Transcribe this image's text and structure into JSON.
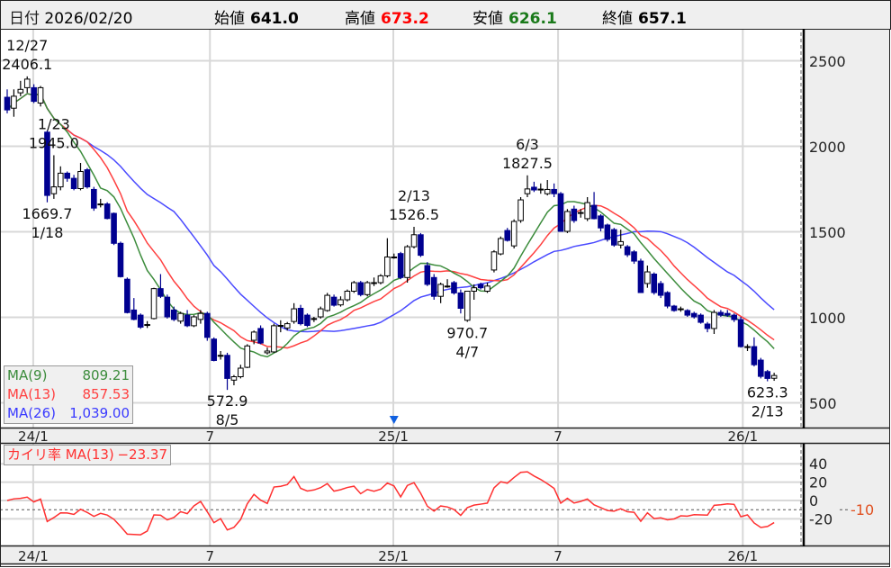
{
  "header": {
    "date_label": "日付",
    "date": "2026/02/20",
    "open_label": "始値",
    "open": "641.0",
    "high_label": "高値",
    "high": "673.2",
    "low_label": "安値",
    "low": "626.1",
    "close_label": "終値",
    "close": "657.1"
  },
  "colors": {
    "up_fill": "#ffffff",
    "down_fill": "#000090",
    "ma9": "#3c8c3c",
    "ma13": "#ff4040",
    "ma26": "#4a4aff",
    "kairi": "#ff3030",
    "high_value": "#ff0000",
    "low_value": "#1a7a1a",
    "minus10_label": "#e05020"
  },
  "legend": [
    {
      "name": "MA(9)",
      "value": "809.21",
      "color": "#3c8c3c"
    },
    {
      "name": "MA(13)",
      "value": "857.53",
      "color": "#ff4040"
    },
    {
      "name": "MA(26)",
      "value": "1,039.00",
      "color": "#3a3aff"
    }
  ],
  "kairi_legend": {
    "name": "カイリ率 MA(13)",
    "value": "−23.37"
  },
  "chart_data": [
    {
      "type": "candlestick",
      "interval": "weekly",
      "ylim": [
        400,
        2650
      ],
      "yticks": [
        500,
        1000,
        1500,
        2000,
        2500
      ],
      "grid": true,
      "moving_averages": [
        9,
        13,
        26
      ],
      "xticks": [
        {
          "label": "24/1",
          "week": 3.9
        },
        {
          "label": "7",
          "week": 30.4
        },
        {
          "label": "25/1",
          "week": 57.9
        },
        {
          "label": "7",
          "week": 82.6
        },
        {
          "label": "26/1",
          "week": 110.3
        }
      ],
      "ohlc": [
        [
          2284,
          2330,
          2190,
          2210
        ],
        [
          2220,
          2330,
          2170,
          2290
        ],
        [
          2310,
          2380,
          2290,
          2330
        ],
        [
          2340,
          2406.1,
          2310,
          2390
        ],
        [
          2340,
          2360,
          2250,
          2260
        ],
        [
          2250,
          2350,
          2230,
          2340
        ],
        [
          2080,
          2090,
          1669.7,
          1710
        ],
        [
          1720,
          1945.0,
          1690,
          1760
        ],
        [
          1760,
          1880,
          1740,
          1840
        ],
        [
          1840,
          1850,
          1790,
          1810
        ],
        [
          1810,
          1830,
          1740,
          1750
        ],
        [
          1750,
          1900,
          1740,
          1850
        ],
        [
          1860,
          1870,
          1750,
          1760
        ],
        [
          1745,
          1760,
          1620,
          1636
        ],
        [
          1660,
          1690,
          1640,
          1660
        ],
        [
          1660,
          1670,
          1570,
          1575
        ],
        [
          1605,
          1610,
          1420,
          1430
        ],
        [
          1430,
          1440,
          1230,
          1235
        ],
        [
          1220,
          1230,
          1020,
          1025
        ],
        [
          1040,
          1110,
          980,
          985
        ],
        [
          1010,
          1020,
          930,
          940
        ],
        [
          955,
          975,
          935,
          955
        ],
        [
          990,
          1170,
          985,
          1165
        ],
        [
          1165,
          1250,
          1110,
          1120
        ],
        [
          1115,
          1130,
          990,
          1000
        ],
        [
          1040,
          1060,
          975,
          985
        ],
        [
          975,
          1030,
          960,
          1020
        ],
        [
          1010,
          1040,
          940,
          948
        ],
        [
          948,
          1010,
          940,
          1000
        ],
        [
          985,
          1040,
          960,
          1020
        ],
        [
          1020,
          1030,
          860,
          880
        ],
        [
          870,
          880,
          740,
          745
        ],
        [
          775,
          800,
          750,
          775
        ],
        [
          775,
          790,
          572.9,
          640
        ],
        [
          630,
          660,
          600,
          650
        ],
        [
          650,
          720,
          640,
          700
        ],
        [
          705,
          840,
          700,
          830
        ],
        [
          863,
          920,
          840,
          911
        ],
        [
          932,
          950,
          840,
          847
        ],
        [
          790,
          820,
          780,
          800
        ],
        [
          795,
          960,
          790,
          948
        ],
        [
          950,
          980,
          910,
          950
        ],
        [
          935,
          970,
          920,
          960
        ],
        [
          973,
          1080,
          960,
          1047
        ],
        [
          1050,
          1070,
          950,
          960
        ],
        [
          1010,
          1020,
          940,
          950
        ],
        [
          985,
          1000,
          970,
          990
        ],
        [
          1000,
          1060,
          990,
          1047
        ],
        [
          1037,
          1140,
          1030,
          1126
        ],
        [
          1115,
          1130,
          1060,
          1068
        ],
        [
          1070,
          1120,
          1060,
          1100
        ],
        [
          1100,
          1160,
          1090,
          1150
        ],
        [
          1150,
          1210,
          1140,
          1200
        ],
        [
          1200,
          1210,
          1120,
          1130
        ],
        [
          1130,
          1210,
          1120,
          1200
        ],
        [
          1200,
          1230,
          1180,
          1200
        ],
        [
          1200,
          1250,
          1190,
          1240
        ],
        [
          1240,
          1460,
          1230,
          1350
        ],
        [
          1350,
          1370,
          1340,
          1350
        ],
        [
          1370,
          1380,
          1220,
          1230
        ],
        [
          1230,
          1420,
          1200,
          1410
        ],
        [
          1410,
          1526.5,
          1400,
          1480
        ],
        [
          1480,
          1490,
          1350,
          1360
        ],
        [
          1300,
          1320,
          1180,
          1190
        ],
        [
          1230,
          1250,
          1100,
          1120
        ],
        [
          1120,
          1200,
          1080,
          1190
        ],
        [
          1180,
          1220,
          1170,
          1180
        ],
        [
          1200,
          1210,
          1130,
          1140
        ],
        [
          1140,
          1160,
          1020,
          1050
        ],
        [
          980,
          1150,
          970.7,
          1150
        ],
        [
          1150,
          1190,
          1100,
          1170
        ],
        [
          1190,
          1200,
          1160,
          1170
        ],
        [
          1150,
          1200,
          1140,
          1180
        ],
        [
          1274,
          1390,
          1260,
          1380
        ],
        [
          1368,
          1470,
          1360,
          1458
        ],
        [
          1505,
          1520,
          1440,
          1447
        ],
        [
          1415,
          1570,
          1400,
          1558
        ],
        [
          1563,
          1700,
          1550,
          1684
        ],
        [
          1720,
          1827.5,
          1700,
          1748
        ],
        [
          1758,
          1790,
          1730,
          1742
        ],
        [
          1747,
          1780,
          1720,
          1747
        ],
        [
          1720,
          1800,
          1710,
          1745
        ],
        [
          1745,
          1780,
          1700,
          1720
        ],
        [
          1720,
          1730,
          1500,
          1500
        ],
        [
          1500,
          1630,
          1490,
          1616
        ],
        [
          1630,
          1650,
          1550,
          1563
        ],
        [
          1610,
          1630,
          1580,
          1610
        ],
        [
          1574,
          1700,
          1560,
          1668
        ],
        [
          1652,
          1730,
          1570,
          1574
        ],
        [
          1590,
          1600,
          1500,
          1520
        ],
        [
          1537,
          1545,
          1440,
          1453
        ],
        [
          1510,
          1520,
          1410,
          1420
        ],
        [
          1420,
          1510,
          1400,
          1440
        ],
        [
          1410,
          1420,
          1350,
          1363
        ],
        [
          1380,
          1390,
          1310,
          1326
        ],
        [
          1326,
          1340,
          1140,
          1142
        ],
        [
          1195,
          1300,
          1170,
          1263
        ],
        [
          1250,
          1260,
          1130,
          1142
        ],
        [
          1195,
          1210,
          1110,
          1126
        ],
        [
          1142,
          1150,
          1050,
          1063
        ],
        [
          1063,
          1070,
          1030,
          1037
        ],
        [
          1047,
          1060,
          1030,
          1047
        ],
        [
          1037,
          1045,
          1000,
          1010
        ],
        [
          1020,
          1030,
          990,
          1000
        ],
        [
          1010,
          1020,
          960,
          968
        ],
        [
          958,
          970,
          910,
          932
        ],
        [
          932,
          1040,
          900,
          1026
        ],
        [
          1026,
          1040,
          1000,
          1010
        ],
        [
          1020,
          1040,
          1000,
          1010
        ],
        [
          1010,
          1020,
          970,
          984
        ],
        [
          984,
          1000,
          820,
          826
        ],
        [
          826,
          840,
          800,
          826
        ],
        [
          826,
          880,
          710,
          720
        ],
        [
          747,
          760,
          640,
          652
        ],
        [
          680,
          690,
          623.3,
          640
        ],
        [
          641,
          673.2,
          626.1,
          657.1
        ]
      ],
      "annotations": [
        {
          "week": 3,
          "side": "above",
          "date": "12/27",
          "price": "2406.1"
        },
        {
          "week": 7,
          "side": "above",
          "date": "1/23",
          "price": "1945.0"
        },
        {
          "week": 6,
          "side": "below",
          "date": "1/18",
          "price": "1669.7"
        },
        {
          "week": 33,
          "side": "below",
          "date": "8/5",
          "price": "572.9"
        },
        {
          "week": 61,
          "side": "above",
          "date": "2/13",
          "price": "1526.5"
        },
        {
          "week": 69,
          "side": "below",
          "date": "4/7",
          "price": "970.7"
        },
        {
          "week": 78,
          "side": "above",
          "date": "6/3",
          "price": "1827.5"
        },
        {
          "week": 114,
          "side": "below",
          "date": "2/13",
          "price": "623.3"
        }
      ],
      "marker": {
        "week": 58,
        "shape": "triangle-down",
        "color": "#1060e0"
      }
    },
    {
      "type": "line",
      "series": [
        {
          "name": "カイリ率 MA(13)",
          "formula": "(close-MA13)/MA13*100"
        }
      ],
      "ylim": [
        -32,
        50
      ],
      "yticks": [
        40,
        20,
        0,
        -20
      ],
      "reference_line": {
        "value": -10,
        "label": "-10",
        "style": "dashed"
      }
    }
  ]
}
